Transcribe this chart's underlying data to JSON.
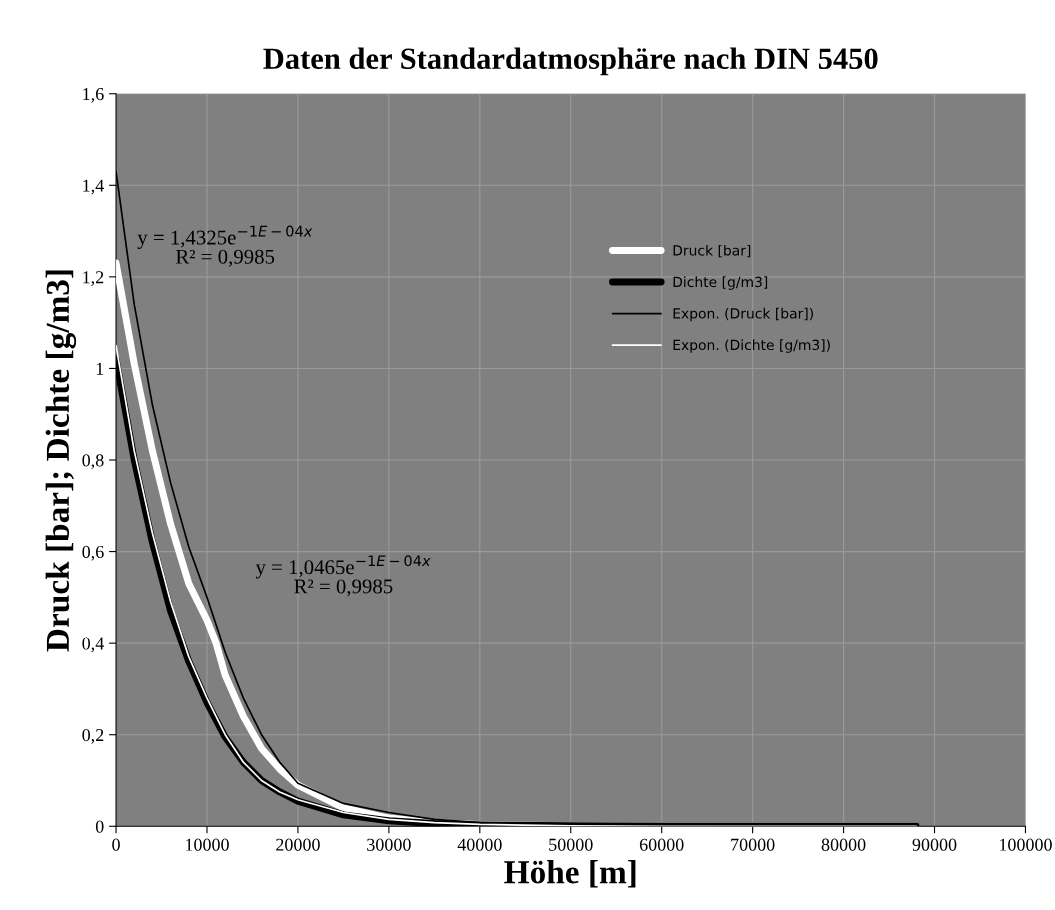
{
  "chart_data": {
    "type": "line",
    "title": "Daten der Standardatmosphäre nach DIN 5450",
    "xlabel": "Höhe [m]",
    "ylabel": "Druck [bar]; Dichte [g/m3]",
    "xlim": [
      0,
      100000
    ],
    "xticks": [
      0,
      10000,
      20000,
      30000,
      40000,
      50000,
      60000,
      70000,
      80000,
      90000,
      100000
    ],
    "ylim": [
      0,
      1.6
    ],
    "yticks": [
      0,
      {
        "value": 0.2,
        "label": "0,2"
      },
      {
        "value": 0.4,
        "label": "0,4"
      },
      {
        "value": 0.6,
        "label": "0,6"
      },
      {
        "value": 0.8,
        "label": "0,8"
      },
      1,
      {
        "value": 1.2,
        "label": "1,2"
      },
      {
        "value": 1.4,
        "label": "1,4"
      },
      {
        "value": 1.6,
        "label": "1,6"
      }
    ],
    "grid": true,
    "legend": "right",
    "series": [
      {
        "name": "Druck [bar]",
        "color": "#ffffff",
        "x": [
          0,
          2000,
          4000,
          6000,
          8000,
          10000,
          11000,
          12000,
          14000,
          16000,
          18000,
          20000,
          25000,
          30000,
          35000,
          40000,
          50000,
          60000,
          70000,
          80000,
          88000
        ],
        "values": [
          1.23,
          1.01,
          0.82,
          0.66,
          0.53,
          0.45,
          0.4,
          0.33,
          0.24,
          0.17,
          0.125,
          0.09,
          0.04,
          0.018,
          0.008,
          0.004,
          0.001,
          0,
          0,
          0,
          0
        ]
      },
      {
        "name": "Dichte [g/m3]",
        "color": "#000000",
        "x": [
          0,
          2000,
          4000,
          6000,
          8000,
          10000,
          12000,
          14000,
          16000,
          18000,
          20000,
          25000,
          30000,
          35000,
          40000,
          50000,
          60000,
          70000,
          88000
        ],
        "values": [
          1.02,
          0.8,
          0.62,
          0.47,
          0.36,
          0.27,
          0.195,
          0.14,
          0.1,
          0.075,
          0.055,
          0.025,
          0.012,
          0.006,
          0.003,
          0.001,
          0,
          0,
          0
        ]
      },
      {
        "name": "Expon. (Druck [bar])",
        "color": "#000000",
        "x": [
          0,
          2000,
          4000,
          6000,
          8000,
          10000,
          12000,
          14000,
          16000,
          18000,
          20000,
          25000,
          30000,
          35000,
          40000,
          50000,
          60000,
          70000,
          88000
        ],
        "values": [
          1.43,
          1.14,
          0.92,
          0.75,
          0.61,
          0.5,
          0.38,
          0.28,
          0.2,
          0.14,
          0.094,
          0.05,
          0.03,
          0.015,
          0.008,
          0.002,
          0.001,
          0,
          0
        ]
      },
      {
        "name": "Expon. (Dichte [g/m3])",
        "color": "#ffffff",
        "x": [
          0,
          2000,
          4000,
          6000,
          8000,
          10000,
          12000,
          14000,
          16000,
          18000,
          20000,
          25000,
          30000,
          35000,
          40000,
          50000,
          60000,
          88000
        ],
        "values": [
          1.05,
          0.82,
          0.64,
          0.49,
          0.37,
          0.28,
          0.2,
          0.14,
          0.1,
          0.075,
          0.058,
          0.03,
          0.015,
          0.008,
          0.004,
          0.001,
          0,
          0
        ]
      }
    ],
    "annotations": [
      "y = 1,4325e$^{−1E−04x}$\nR² = 0,9985",
      "y = 1,0465e$^{−1E−04x}$\nR² = 0,9985"
    ]
  }
}
